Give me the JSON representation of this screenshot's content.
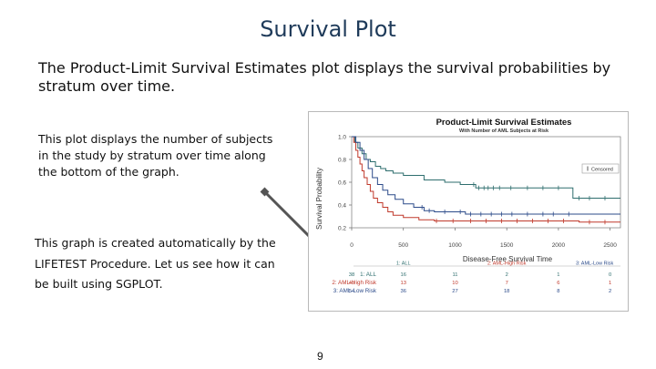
{
  "slide": {
    "title": "Survival Plot",
    "intro": "The Product-Limit Survival Estimates plot displays the survival probabilities by stratum over time.",
    "note_subjects": "This plot displays the number of subjects in the study by stratum over time along the bottom of the graph.",
    "note_lifetest": "This graph is created automatically by the LIFETEST Procedure.  Let us see how it can be built using SGPLOT.",
    "page_number": "9"
  },
  "chart_data": {
    "type": "line",
    "title": "Product-Limit Survival Estimates",
    "subtitle": "With Number of AML Subjects at Risk",
    "xlabel": "Disease-Free Survival Time",
    "ylabel": "Survival Probability",
    "xlim": [
      0,
      2600
    ],
    "ylim": [
      0.2,
      1.0
    ],
    "x_ticks": [
      "0",
      "500",
      "1000",
      "1500",
      "2000",
      "2500"
    ],
    "y_ticks": [
      "0.2",
      "0.4",
      "0.6",
      "0.8",
      "1.0"
    ],
    "legend": "Censored",
    "colors": {
      "s1": "#2e6e6e",
      "s2": "#c0392b",
      "s3": "#2c4b8a"
    },
    "series": [
      {
        "name": "1: ALL",
        "steps": [
          [
            0,
            1.0
          ],
          [
            30,
            0.95
          ],
          [
            60,
            0.9
          ],
          [
            100,
            0.85
          ],
          [
            140,
            0.8
          ],
          [
            180,
            0.78
          ],
          [
            230,
            0.74
          ],
          [
            280,
            0.72
          ],
          [
            330,
            0.7
          ],
          [
            400,
            0.68
          ],
          [
            500,
            0.66
          ],
          [
            700,
            0.62
          ],
          [
            900,
            0.6
          ],
          [
            1050,
            0.58
          ],
          [
            1200,
            0.55
          ],
          [
            1400,
            0.55
          ],
          [
            2100,
            0.55
          ],
          [
            2140,
            0.46
          ],
          [
            2600,
            0.46
          ]
        ],
        "censored": [
          1180,
          1230,
          1280,
          1320,
          1370,
          1430,
          1540,
          1700,
          1850,
          2000,
          2200,
          2300,
          2450
        ]
      },
      {
        "name": "2: AML-High Risk",
        "steps": [
          [
            0,
            1.0
          ],
          [
            20,
            0.95
          ],
          [
            40,
            0.88
          ],
          [
            60,
            0.82
          ],
          [
            80,
            0.76
          ],
          [
            100,
            0.7
          ],
          [
            120,
            0.64
          ],
          [
            150,
            0.58
          ],
          [
            180,
            0.52
          ],
          [
            210,
            0.46
          ],
          [
            250,
            0.42
          ],
          [
            300,
            0.38
          ],
          [
            350,
            0.34
          ],
          [
            400,
            0.31
          ],
          [
            500,
            0.29
          ],
          [
            650,
            0.27
          ],
          [
            800,
            0.26
          ],
          [
            2150,
            0.26
          ],
          [
            2200,
            0.25
          ],
          [
            2600,
            0.25
          ]
        ],
        "censored": [
          820,
          980,
          1150,
          1300,
          1450,
          1600,
          1750,
          1900,
          2050,
          2300,
          2450
        ]
      },
      {
        "name": "3: AML-Low Risk",
        "steps": [
          [
            0,
            1.0
          ],
          [
            40,
            0.95
          ],
          [
            80,
            0.88
          ],
          [
            120,
            0.8
          ],
          [
            160,
            0.72
          ],
          [
            200,
            0.64
          ],
          [
            250,
            0.58
          ],
          [
            300,
            0.53
          ],
          [
            350,
            0.49
          ],
          [
            420,
            0.45
          ],
          [
            500,
            0.41
          ],
          [
            600,
            0.38
          ],
          [
            700,
            0.35
          ],
          [
            800,
            0.34
          ],
          [
            1000,
            0.34
          ],
          [
            1100,
            0.32
          ],
          [
            1600,
            0.32
          ],
          [
            2600,
            0.32
          ]
        ],
        "censored": [
          680,
          750,
          900,
          1050,
          1150,
          1250,
          1350,
          1450,
          1550,
          1700,
          1850,
          1950,
          2100
        ]
      }
    ],
    "risk_table": {
      "rows": [
        {
          "label": "1: ALL",
          "values": [
            "38",
            "16",
            "11",
            "2",
            "1",
            "0"
          ]
        },
        {
          "label": "2: AML-High Risk",
          "values": [
            "45",
            "13",
            "10",
            "7",
            "6",
            "1"
          ]
        },
        {
          "label": "3: AML-Low Risk",
          "values": [
            "54",
            "36",
            "27",
            "18",
            "8",
            "2"
          ]
        }
      ],
      "header": [
        "1: ALL",
        "2: AML-High Risk",
        "3: AML-Low Risk"
      ]
    }
  }
}
